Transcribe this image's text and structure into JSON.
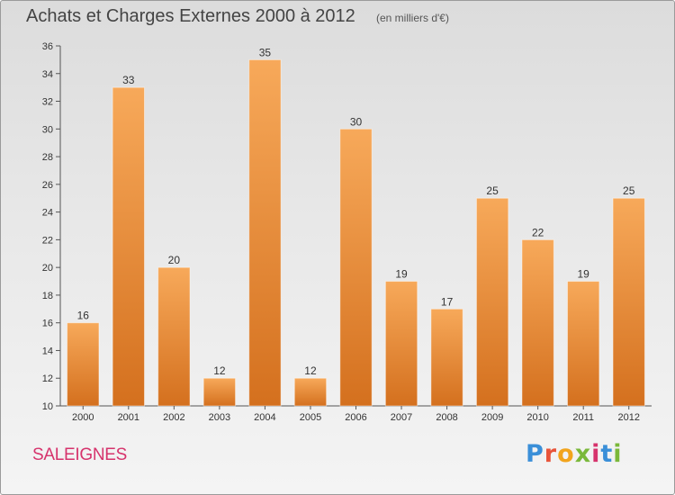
{
  "header": {
    "title": "Achats et Charges Externes 2000 à 2012",
    "subtitle": "(en milliers d'€)"
  },
  "footer": {
    "place": "SALEIGNES",
    "brand_letters": [
      "P",
      "r",
      "o",
      "x",
      "i",
      "t",
      "i"
    ]
  },
  "colors": {
    "bar_light": "#f7a95a",
    "bar_dark": "#d4701e",
    "brand": [
      "#3a8fd8",
      "#e8543a",
      "#f2a41c",
      "#7ab83a",
      "#d6336c",
      "#3a8fd8",
      "#7ab83a"
    ]
  },
  "chart_data": {
    "type": "bar",
    "title": "Achats et Charges Externes 2000 à 2012",
    "subtitle": "(en milliers d'€)",
    "xlabel": "",
    "ylabel": "",
    "categories": [
      "2000",
      "2001",
      "2002",
      "2003",
      "2004",
      "2005",
      "2006",
      "2007",
      "2008",
      "2009",
      "2010",
      "2011",
      "2012"
    ],
    "values": [
      16,
      33,
      20,
      12,
      35,
      12,
      30,
      19,
      17,
      25,
      22,
      19,
      25
    ],
    "ylim": [
      10,
      36
    ],
    "yticks": [
      10,
      12,
      14,
      16,
      18,
      20,
      22,
      24,
      26,
      28,
      30,
      32,
      34,
      36
    ],
    "grid": false,
    "legend": "none"
  }
}
